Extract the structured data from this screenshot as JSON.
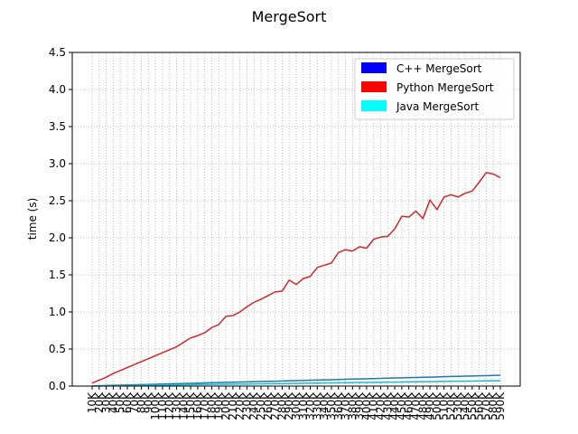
{
  "chart_data": {
    "type": "line",
    "title": "MergeSort",
    "xlabel": "",
    "ylabel": "time (s)",
    "ylim": [
      0,
      4.5
    ],
    "yticks": [
      "0.0",
      "0.5",
      "1.0",
      "1.5",
      "2.0",
      "2.5",
      "3.0",
      "3.5",
      "4.0",
      "4.5"
    ],
    "grid": true,
    "grid_style": "dotted",
    "legend_position": "top-right",
    "x": [
      "10K",
      "20K",
      "30K",
      "40K",
      "50K",
      "60K",
      "70K",
      "80K",
      "90K",
      "100K",
      "110K",
      "120K",
      "130K",
      "140K",
      "150K",
      "160K",
      "170K",
      "180K",
      "190K",
      "200K",
      "210K",
      "220K",
      "230K",
      "240K",
      "250K",
      "260K",
      "270K",
      "280K",
      "290K",
      "300K",
      "310K",
      "320K",
      "330K",
      "340K",
      "350K",
      "360K",
      "370K",
      "380K",
      "390K",
      "400K",
      "410K",
      "420K",
      "430K",
      "440K",
      "450K",
      "460K",
      "470K",
      "480K",
      "490K",
      "500K",
      "510K",
      "520K",
      "530K",
      "540K",
      "550K",
      "560K",
      "570K",
      "580K",
      "590K"
    ],
    "legend": [
      {
        "label": "C++ MergeSort",
        "color": "#0000ff"
      },
      {
        "label": "Python MergeSort",
        "color": "#ff0000"
      },
      {
        "label": "Java MergeSort",
        "color": "#00ffff"
      }
    ],
    "series": [
      {
        "name": "Python MergeSort",
        "color": "#d62728",
        "values": [
          0.04,
          0.08,
          0.12,
          0.17,
          0.21,
          0.25,
          0.29,
          0.33,
          0.37,
          0.41,
          0.45,
          0.49,
          0.53,
          0.59,
          0.65,
          0.68,
          0.72,
          0.79,
          0.83,
          0.94,
          0.95,
          1.0,
          1.07,
          1.13,
          1.17,
          1.22,
          1.27,
          1.28,
          1.43,
          1.37,
          1.45,
          1.48,
          1.6,
          1.63,
          1.66,
          1.8,
          1.84,
          1.82,
          1.88,
          1.86,
          1.98,
          2.01,
          2.02,
          2.12,
          2.29,
          2.28,
          2.36,
          2.26,
          2.51,
          2.38,
          2.55,
          2.58,
          2.55,
          2.6,
          2.63,
          2.75,
          2.88,
          2.86,
          2.81
        ]
      },
      {
        "name": "C++ MergeSort",
        "color": "#1f77b4",
        "values": [
          0.002,
          0.005,
          0.008,
          0.01,
          0.012,
          0.015,
          0.017,
          0.02,
          0.022,
          0.025,
          0.027,
          0.03,
          0.032,
          0.035,
          0.037,
          0.04,
          0.042,
          0.045,
          0.047,
          0.05,
          0.052,
          0.055,
          0.057,
          0.06,
          0.062,
          0.064,
          0.066,
          0.069,
          0.071,
          0.074,
          0.076,
          0.079,
          0.081,
          0.084,
          0.086,
          0.089,
          0.091,
          0.094,
          0.096,
          0.099,
          0.101,
          0.104,
          0.106,
          0.109,
          0.111,
          0.114,
          0.116,
          0.119,
          0.121,
          0.124,
          0.126,
          0.129,
          0.131,
          0.134,
          0.136,
          0.139,
          0.141,
          0.144,
          0.146
        ]
      },
      {
        "name": "Java MergeSort",
        "color": "#17becf",
        "values": [
          0.001,
          0.002,
          0.004,
          0.005,
          0.006,
          0.007,
          0.009,
          0.01,
          0.011,
          0.012,
          0.013,
          0.015,
          0.016,
          0.017,
          0.018,
          0.02,
          0.021,
          0.022,
          0.023,
          0.025,
          0.026,
          0.027,
          0.028,
          0.029,
          0.031,
          0.032,
          0.033,
          0.034,
          0.035,
          0.037,
          0.038,
          0.039,
          0.04,
          0.042,
          0.043,
          0.044,
          0.045,
          0.047,
          0.048,
          0.049,
          0.05,
          0.051,
          0.053,
          0.054,
          0.055,
          0.056,
          0.058,
          0.059,
          0.06,
          0.061,
          0.062,
          0.064,
          0.065,
          0.066,
          0.067,
          0.069,
          0.07,
          0.071,
          0.072
        ]
      }
    ]
  }
}
